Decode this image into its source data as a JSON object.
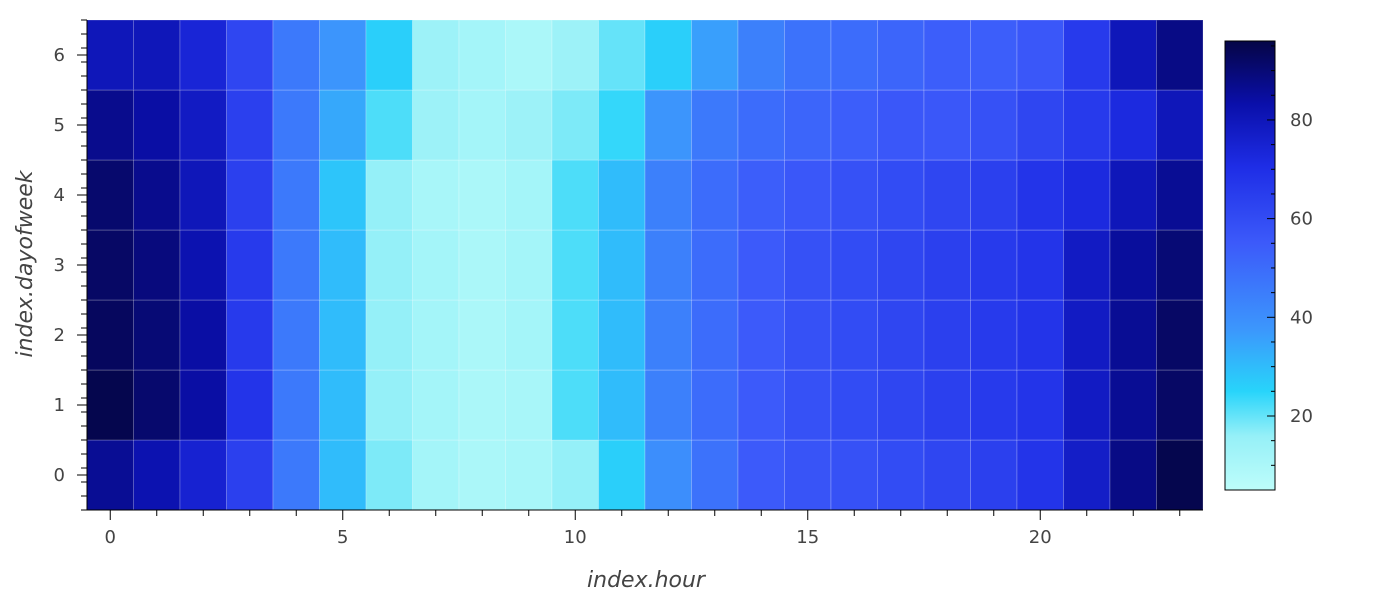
{
  "chart_data": {
    "type": "heatmap",
    "xlabel": "index.hour",
    "ylabel": "index.dayofweek",
    "x": [
      0,
      1,
      2,
      3,
      4,
      5,
      6,
      7,
      8,
      9,
      10,
      11,
      12,
      13,
      14,
      15,
      16,
      17,
      18,
      19,
      20,
      21,
      22,
      23
    ],
    "y": [
      0,
      1,
      2,
      3,
      4,
      5,
      6
    ],
    "x_ticks": [
      0,
      5,
      10,
      15,
      20
    ],
    "y_ticks": [
      0,
      1,
      2,
      3,
      4,
      5,
      6
    ],
    "colorbar_ticks": [
      20,
      40,
      60,
      80
    ],
    "colorbar_range": [
      5,
      96
    ],
    "values": [
      [
        86,
        82,
        75,
        64,
        46,
        30,
        18,
        12,
        10,
        11,
        16,
        26,
        40,
        48,
        55,
        57,
        58,
        60,
        62,
        64,
        68,
        77,
        88,
        95
      ],
      [
        95,
        91,
        84,
        68,
        46,
        30,
        16,
        12,
        10,
        11,
        22,
        30,
        44,
        50,
        55,
        58,
        60,
        62,
        64,
        66,
        68,
        78,
        86,
        92
      ],
      [
        93,
        90,
        84,
        66,
        46,
        30,
        16,
        12,
        10,
        12,
        22,
        30,
        44,
        50,
        55,
        58,
        60,
        62,
        64,
        66,
        68,
        78,
        86,
        92
      ],
      [
        92,
        89,
        82,
        66,
        46,
        30,
        16,
        12,
        10,
        12,
        22,
        30,
        44,
        50,
        55,
        58,
        60,
        62,
        64,
        66,
        68,
        78,
        85,
        90
      ],
      [
        91,
        87,
        80,
        64,
        46,
        28,
        16,
        11,
        10,
        12,
        22,
        30,
        44,
        50,
        54,
        56,
        58,
        60,
        62,
        64,
        68,
        72,
        80,
        86
      ],
      [
        87,
        84,
        78,
        64,
        46,
        34,
        22,
        14,
        12,
        14,
        18,
        24,
        38,
        46,
        50,
        52,
        54,
        56,
        56,
        58,
        62,
        66,
        72,
        80
      ],
      [
        80,
        80,
        74,
        62,
        46,
        38,
        26,
        14,
        12,
        10,
        14,
        20,
        26,
        36,
        44,
        48,
        50,
        52,
        54,
        54,
        56,
        66,
        80,
        88
      ]
    ]
  }
}
